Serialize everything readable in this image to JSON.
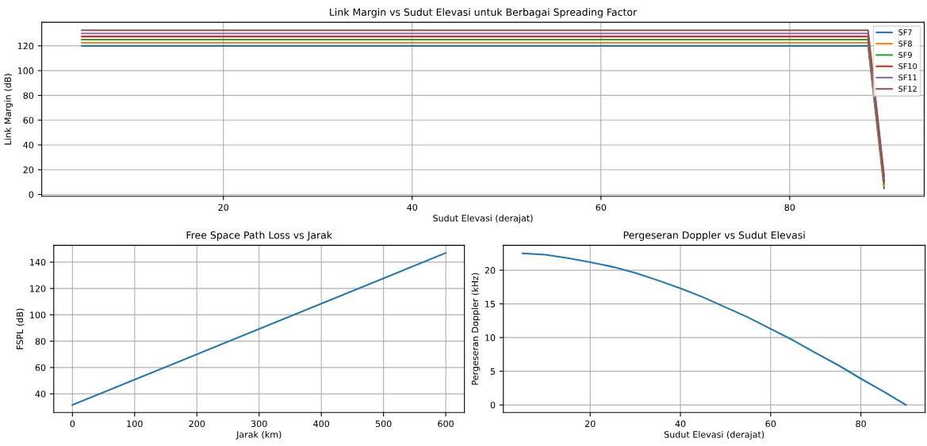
{
  "chart_data": [
    {
      "type": "line",
      "title": "Link Margin vs Sudut Elevasi untuk Berbagai Spreading Factor",
      "xlabel": "Sudut Elevasi (derajat)",
      "ylabel": "Link Margin (dB)",
      "x": [
        5,
        88.3,
        90
      ],
      "series": [
        {
          "name": "SF7",
          "color": "#1f77b4",
          "values": [
            120,
            120,
            5
          ]
        },
        {
          "name": "SF8",
          "color": "#ff7f0e",
          "values": [
            122.5,
            122.5,
            7
          ]
        },
        {
          "name": "SF9",
          "color": "#2ca02c",
          "values": [
            125,
            125,
            9
          ]
        },
        {
          "name": "SF10",
          "color": "#d62728",
          "values": [
            127.5,
            127.5,
            11
          ]
        },
        {
          "name": "SF11",
          "color": "#9467bd",
          "values": [
            130,
            130,
            13
          ]
        },
        {
          "name": "SF12",
          "color": "#8c564b",
          "values": [
            132.5,
            132.5,
            15
          ]
        }
      ],
      "xlim": [
        0.75,
        94.25
      ],
      "ylim": [
        -1.4,
        139
      ],
      "xticks": [
        20,
        40,
        60,
        80
      ],
      "yticks": [
        0,
        20,
        40,
        60,
        80,
        100,
        120
      ],
      "grid": true,
      "legend": "top right"
    },
    {
      "type": "line",
      "title": "Free Space Path Loss vs Jarak",
      "xlabel": "Jarak (km)",
      "ylabel": "FSPL (dB)",
      "x": [
        0,
        600
      ],
      "series": [
        {
          "color": "#1f77b4",
          "values": [
            31.6,
            147
          ]
        }
      ],
      "xlim": [
        -30,
        630
      ],
      "ylim": [
        25.8,
        152.8
      ],
      "xticks": [
        0,
        100,
        200,
        300,
        400,
        500,
        600
      ],
      "yticks": [
        40,
        60,
        80,
        100,
        120,
        140
      ],
      "grid": true
    },
    {
      "type": "line",
      "title": "Pergeseran Doppler vs Sudut Elevasi",
      "xlabel": "Sudut Elevasi (derajat)",
      "ylabel": "Pergeseran Doppler (kHz)",
      "x": [
        5,
        10,
        15,
        20,
        25,
        30,
        35,
        40,
        45,
        50,
        55,
        60,
        65,
        70,
        75,
        80,
        85,
        90
      ],
      "series": [
        {
          "color": "#1f77b4",
          "values": [
            22.5,
            22.3,
            21.8,
            21.2,
            20.5,
            19.6,
            18.5,
            17.3,
            16.0,
            14.5,
            13.0,
            11.3,
            9.6,
            7.7,
            5.9,
            3.9,
            2.0,
            0
          ]
        }
      ],
      "xlim": [
        0.75,
        94.25
      ],
      "ylim": [
        -1.13,
        23.7
      ],
      "xticks": [
        20,
        40,
        60,
        80
      ],
      "yticks": [
        0,
        5,
        10,
        15,
        20
      ],
      "grid": true
    }
  ]
}
